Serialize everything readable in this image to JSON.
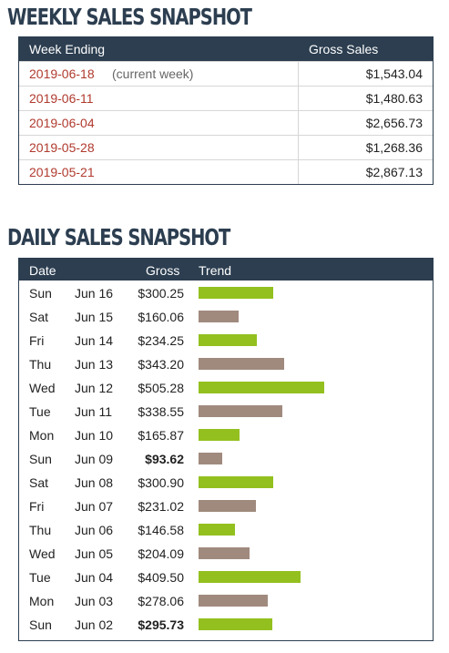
{
  "weekly": {
    "title": "WEEKLY SALES SNAPSHOT",
    "headers": {
      "week": "Week Ending",
      "gross": "Gross Sales"
    },
    "rows": [
      {
        "date": "2019-06-18",
        "note": "(current week)",
        "amount": "$1,543.04"
      },
      {
        "date": "2019-06-11",
        "note": "",
        "amount": "$1,480.63"
      },
      {
        "date": "2019-06-04",
        "note": "",
        "amount": "$2,656.73"
      },
      {
        "date": "2019-05-28",
        "note": "",
        "amount": "$1,268.36"
      },
      {
        "date": "2019-05-21",
        "note": "",
        "amount": "$2,867.13"
      }
    ]
  },
  "daily": {
    "title": "DAILY SALES SNAPSHOT",
    "headers": {
      "date": "Date",
      "gross": "Gross",
      "trend": "Trend"
    },
    "colors": {
      "green": "#93c01f",
      "taupe": "#a08a7e"
    },
    "rows": [
      {
        "day": "Sun",
        "date": "Jun 16",
        "gross": "$300.25",
        "value": 300.25,
        "bold": false,
        "color": "green"
      },
      {
        "day": "Sat",
        "date": "Jun 15",
        "gross": "$160.06",
        "value": 160.06,
        "bold": false,
        "color": "taupe"
      },
      {
        "day": "Fri",
        "date": "Jun 14",
        "gross": "$234.25",
        "value": 234.25,
        "bold": false,
        "color": "green"
      },
      {
        "day": "Thu",
        "date": "Jun 13",
        "gross": "$343.20",
        "value": 343.2,
        "bold": false,
        "color": "taupe"
      },
      {
        "day": "Wed",
        "date": "Jun 12",
        "gross": "$505.28",
        "value": 505.28,
        "bold": false,
        "color": "green"
      },
      {
        "day": "Tue",
        "date": "Jun 11",
        "gross": "$338.55",
        "value": 338.55,
        "bold": false,
        "color": "taupe"
      },
      {
        "day": "Mon",
        "date": "Jun 10",
        "gross": "$165.87",
        "value": 165.87,
        "bold": false,
        "color": "green"
      },
      {
        "day": "Sun",
        "date": "Jun 09",
        "gross": "$93.62",
        "value": 93.62,
        "bold": true,
        "color": "taupe"
      },
      {
        "day": "Sat",
        "date": "Jun 08",
        "gross": "$300.90",
        "value": 300.9,
        "bold": false,
        "color": "green"
      },
      {
        "day": "Fri",
        "date": "Jun 07",
        "gross": "$231.02",
        "value": 231.02,
        "bold": false,
        "color": "taupe"
      },
      {
        "day": "Thu",
        "date": "Jun 06",
        "gross": "$146.58",
        "value": 146.58,
        "bold": false,
        "color": "green"
      },
      {
        "day": "Wed",
        "date": "Jun 05",
        "gross": "$204.09",
        "value": 204.09,
        "bold": false,
        "color": "taupe"
      },
      {
        "day": "Tue",
        "date": "Jun 04",
        "gross": "$409.50",
        "value": 409.5,
        "bold": false,
        "color": "green"
      },
      {
        "day": "Mon",
        "date": "Jun 03",
        "gross": "$278.06",
        "value": 278.06,
        "bold": false,
        "color": "taupe"
      },
      {
        "day": "Sun",
        "date": "Jun 02",
        "gross": "$295.73",
        "value": 295.73,
        "bold": true,
        "color": "green"
      }
    ]
  }
}
